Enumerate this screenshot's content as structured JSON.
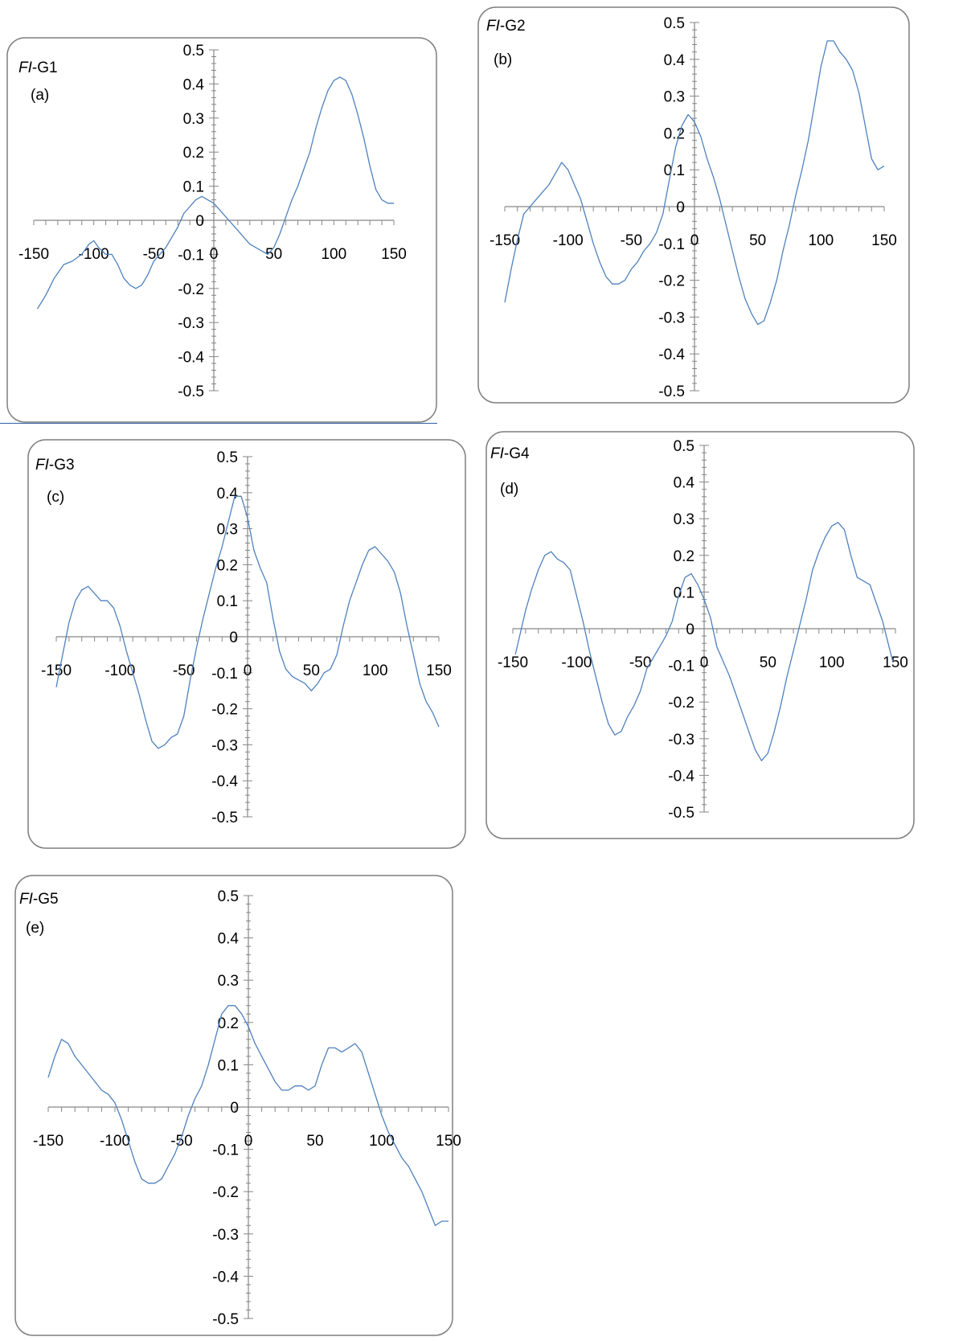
{
  "chart_data": [
    {
      "type": "line",
      "title_italic": "FI",
      "title_rest": "-G1",
      "panel_letter": "(a)",
      "xlim": [
        -150,
        150
      ],
      "ylim": [
        -0.5,
        0.5
      ],
      "x_ticks": [
        "-150",
        "-100",
        "-50",
        "0",
        "50",
        "100",
        "150"
      ],
      "y_ticks": [
        "-0.5",
        "-0.4",
        "-0.3",
        "-0.2",
        "-0.1",
        "0",
        "0.1",
        "0.2",
        "0.3",
        "0.4",
        "0.5"
      ],
      "grid": false,
      "legend": "none",
      "line_color": "#4f81bd",
      "series": [
        {
          "x": [
            -147,
            -140,
            -133,
            -125,
            -118,
            -110,
            -104,
            -100,
            -96,
            -90,
            -85,
            -80,
            -75,
            -70,
            -65,
            -60,
            -55,
            -50,
            -45,
            -40,
            -35,
            -30,
            -25,
            -20,
            -15,
            -10,
            -5,
            0,
            5,
            10,
            15,
            20,
            25,
            30,
            35,
            40,
            45,
            50,
            55,
            60,
            65,
            70,
            75,
            80,
            85,
            90,
            95,
            100,
            105,
            110,
            115,
            120,
            125,
            130,
            135,
            140,
            145,
            150
          ],
          "y": [
            -0.26,
            -0.22,
            -0.17,
            -0.13,
            -0.12,
            -0.1,
            -0.07,
            -0.06,
            -0.08,
            -0.1,
            -0.1,
            -0.13,
            -0.17,
            -0.19,
            -0.2,
            -0.19,
            -0.16,
            -0.12,
            -0.1,
            -0.08,
            -0.05,
            -0.02,
            0.02,
            0.04,
            0.06,
            0.07,
            0.06,
            0.05,
            0.03,
            0.01,
            -0.01,
            -0.03,
            -0.05,
            -0.07,
            -0.08,
            -0.09,
            -0.1,
            -0.08,
            -0.04,
            0.01,
            0.06,
            0.1,
            0.15,
            0.2,
            0.27,
            0.33,
            0.38,
            0.41,
            0.42,
            0.41,
            0.37,
            0.31,
            0.24,
            0.16,
            0.09,
            0.06,
            0.05,
            0.05
          ]
        }
      ]
    },
    {
      "type": "line",
      "title_italic": "FI",
      "title_rest": "-G2",
      "panel_letter": "(b)",
      "xlim": [
        -150,
        150
      ],
      "ylim": [
        -0.5,
        0.5
      ],
      "x_ticks": [
        "-150",
        "-100",
        "-50",
        "0",
        "50",
        "100",
        "150"
      ],
      "y_ticks": [
        "-0.5",
        "-0.4",
        "-0.3",
        "-0.2",
        "-0.1",
        "0",
        "0.1",
        "0.2",
        "0.3",
        "0.4",
        "0.5"
      ],
      "grid": false,
      "legend": "none",
      "line_color": "#4f81bd",
      "series": [
        {
          "x": [
            -150,
            -145,
            -140,
            -135,
            -130,
            -125,
            -120,
            -115,
            -110,
            -105,
            -100,
            -95,
            -90,
            -85,
            -80,
            -75,
            -70,
            -65,
            -60,
            -55,
            -50,
            -45,
            -40,
            -35,
            -30,
            -25,
            -20,
            -15,
            -10,
            -5,
            0,
            5,
            10,
            15,
            20,
            25,
            30,
            35,
            40,
            45,
            50,
            55,
            60,
            65,
            70,
            75,
            80,
            85,
            90,
            95,
            100,
            105,
            110,
            115,
            120,
            125,
            130,
            135,
            140,
            145,
            150
          ],
          "y": [
            -0.26,
            -0.17,
            -0.09,
            -0.02,
            0.0,
            0.02,
            0.04,
            0.06,
            0.09,
            0.12,
            0.1,
            0.06,
            0.02,
            -0.04,
            -0.1,
            -0.15,
            -0.19,
            -0.21,
            -0.21,
            -0.2,
            -0.17,
            -0.15,
            -0.12,
            -0.1,
            -0.07,
            -0.02,
            0.07,
            0.16,
            0.22,
            0.25,
            0.23,
            0.19,
            0.13,
            0.08,
            0.02,
            -0.05,
            -0.12,
            -0.19,
            -0.25,
            -0.29,
            -0.32,
            -0.31,
            -0.26,
            -0.2,
            -0.12,
            -0.05,
            0.03,
            0.1,
            0.18,
            0.28,
            0.38,
            0.45,
            0.45,
            0.42,
            0.4,
            0.37,
            0.31,
            0.22,
            0.13,
            0.1,
            0.11
          ]
        }
      ]
    },
    {
      "type": "line",
      "title_italic": "FI",
      "title_rest": "-G3",
      "panel_letter": "(c)",
      "xlim": [
        -150,
        150
      ],
      "ylim": [
        -0.5,
        0.5
      ],
      "x_ticks": [
        "-150",
        "-100",
        "-50",
        "0",
        "50",
        "100",
        "150"
      ],
      "y_ticks": [
        "-0.5",
        "-0.4",
        "-0.3",
        "-0.2",
        "-0.1",
        "0",
        "0.1",
        "0.2",
        "0.3",
        "0.4",
        "0.5"
      ],
      "grid": false,
      "legend": "none",
      "line_color": "#4f81bd",
      "series": [
        {
          "x": [
            -150,
            -145,
            -140,
            -135,
            -130,
            -125,
            -120,
            -115,
            -110,
            -105,
            -100,
            -95,
            -90,
            -85,
            -80,
            -75,
            -70,
            -65,
            -60,
            -55,
            -50,
            -45,
            -40,
            -35,
            -30,
            -25,
            -20,
            -15,
            -10,
            -5,
            0,
            5,
            10,
            15,
            20,
            25,
            30,
            35,
            40,
            45,
            50,
            55,
            60,
            65,
            70,
            75,
            80,
            85,
            90,
            95,
            100,
            105,
            110,
            115,
            120,
            125,
            130,
            135,
            140,
            145,
            150
          ],
          "y": [
            -0.14,
            -0.05,
            0.04,
            0.1,
            0.13,
            0.14,
            0.12,
            0.1,
            0.1,
            0.08,
            0.03,
            -0.04,
            -0.1,
            -0.16,
            -0.23,
            -0.29,
            -0.31,
            -0.3,
            -0.28,
            -0.27,
            -0.22,
            -0.12,
            -0.03,
            0.05,
            0.12,
            0.19,
            0.25,
            0.32,
            0.39,
            0.39,
            0.33,
            0.24,
            0.19,
            0.15,
            0.05,
            -0.04,
            -0.09,
            -0.11,
            -0.12,
            -0.13,
            -0.15,
            -0.13,
            -0.1,
            -0.09,
            -0.05,
            0.03,
            0.1,
            0.15,
            0.2,
            0.24,
            0.25,
            0.23,
            0.21,
            0.18,
            0.12,
            0.03,
            -0.05,
            -0.13,
            -0.18,
            -0.21,
            -0.25
          ]
        }
      ]
    },
    {
      "type": "line",
      "title_italic": "FI",
      "title_rest": "-G4",
      "panel_letter": "(d)",
      "xlim": [
        -150,
        150
      ],
      "ylim": [
        -0.5,
        0.5
      ],
      "x_ticks": [
        "-150",
        "-100",
        "-50",
        "0",
        "50",
        "100",
        "150"
      ],
      "y_ticks": [
        "-0.5",
        "-0.4",
        "-0.3",
        "-0.2",
        "-0.1",
        "0",
        "0.1",
        "0.2",
        "0.3",
        "0.4",
        "0.5"
      ],
      "grid": false,
      "legend": "none",
      "line_color": "#4f81bd",
      "series": [
        {
          "x": [
            -148,
            -140,
            -135,
            -130,
            -125,
            -120,
            -115,
            -110,
            -105,
            -100,
            -95,
            -90,
            -85,
            -80,
            -75,
            -70,
            -65,
            -60,
            -55,
            -50,
            -45,
            -40,
            -35,
            -30,
            -25,
            -20,
            -15,
            -10,
            -5,
            0,
            5,
            10,
            15,
            20,
            25,
            30,
            35,
            40,
            45,
            50,
            55,
            60,
            65,
            70,
            75,
            80,
            85,
            90,
            95,
            100,
            105,
            110,
            115,
            120,
            125,
            130,
            135,
            140,
            145,
            148
          ],
          "y": [
            -0.07,
            0.05,
            0.11,
            0.16,
            0.2,
            0.21,
            0.19,
            0.18,
            0.16,
            0.09,
            0.02,
            -0.06,
            -0.13,
            -0.2,
            -0.26,
            -0.29,
            -0.28,
            -0.24,
            -0.21,
            -0.17,
            -0.11,
            -0.08,
            -0.05,
            -0.02,
            0.02,
            0.09,
            0.14,
            0.15,
            0.12,
            0.08,
            0.03,
            -0.05,
            -0.09,
            -0.13,
            -0.18,
            -0.23,
            -0.28,
            -0.33,
            -0.36,
            -0.34,
            -0.28,
            -0.21,
            -0.13,
            -0.06,
            0.01,
            0.08,
            0.16,
            0.21,
            0.25,
            0.28,
            0.29,
            0.27,
            0.2,
            0.14,
            0.13,
            0.12,
            0.07,
            0.02,
            -0.05,
            -0.09
          ]
        }
      ]
    },
    {
      "type": "line",
      "title_italic": "FI",
      "title_rest": "-G5",
      "panel_letter": "(e)",
      "xlim": [
        -150,
        150
      ],
      "ylim": [
        -0.5,
        0.5
      ],
      "x_ticks": [
        "-150",
        "-100",
        "-50",
        "0",
        "50",
        "100",
        "150"
      ],
      "y_ticks": [
        "-0.5",
        "-0.4",
        "-0.3",
        "-0.2",
        "-0.1",
        "0",
        "0.1",
        "0.2",
        "0.3",
        "0.4",
        "0.5"
      ],
      "grid": false,
      "legend": "none",
      "line_color": "#4f81bd",
      "series": [
        {
          "x": [
            -150,
            -145,
            -140,
            -135,
            -130,
            -125,
            -120,
            -115,
            -110,
            -105,
            -100,
            -95,
            -90,
            -85,
            -80,
            -75,
            -70,
            -65,
            -60,
            -55,
            -50,
            -45,
            -40,
            -35,
            -30,
            -25,
            -20,
            -15,
            -10,
            -5,
            0,
            5,
            10,
            15,
            20,
            25,
            30,
            35,
            40,
            45,
            50,
            55,
            60,
            65,
            70,
            75,
            80,
            85,
            90,
            95,
            100,
            105,
            110,
            115,
            120,
            125,
            130,
            135,
            140,
            145,
            150
          ],
          "y": [
            0.07,
            0.12,
            0.16,
            0.15,
            0.12,
            0.1,
            0.08,
            0.06,
            0.04,
            0.03,
            0.01,
            -0.03,
            -0.08,
            -0.13,
            -0.17,
            -0.18,
            -0.18,
            -0.17,
            -0.14,
            -0.11,
            -0.07,
            -0.02,
            0.02,
            0.05,
            0.1,
            0.16,
            0.22,
            0.24,
            0.24,
            0.22,
            0.19,
            0.15,
            0.12,
            0.09,
            0.06,
            0.04,
            0.04,
            0.05,
            0.05,
            0.04,
            0.05,
            0.1,
            0.14,
            0.14,
            0.13,
            0.14,
            0.15,
            0.13,
            0.08,
            0.03,
            -0.02,
            -0.06,
            -0.09,
            -0.12,
            -0.14,
            -0.17,
            -0.2,
            -0.24,
            -0.28,
            -0.27,
            -0.27
          ]
        }
      ]
    }
  ]
}
